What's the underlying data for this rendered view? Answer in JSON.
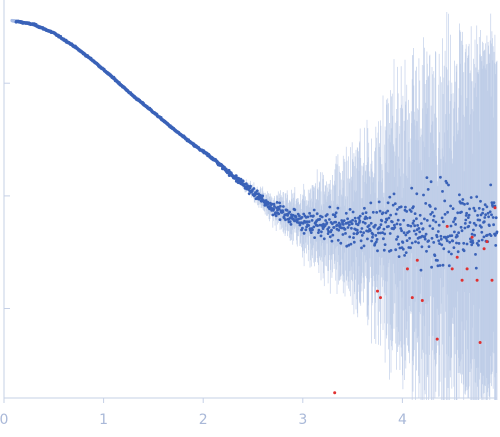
{
  "chart_data": {
    "type": "scatter",
    "title": "",
    "xlabel": "",
    "ylabel": "",
    "xlim": [
      0,
      4.95
    ],
    "y_scale": "log",
    "y_axis_labels_shown": false,
    "x_ticks": [
      "0",
      "1",
      "2",
      "3",
      "4"
    ],
    "grid": false,
    "legend": "none",
    "colors": {
      "axis": "#c5d0e6",
      "tick_label": "#a9b8d8",
      "points": "#3a62b8",
      "error_bars": "#b8c8e6",
      "outliers": "#e03030"
    },
    "series": [
      {
        "role": "scattering intensity (decreasing smoothly to about q = 2.5, then noisy plateau)",
        "x": [
          0.1,
          0.3,
          0.5,
          0.7,
          0.9,
          1.1,
          1.3,
          1.5,
          1.7,
          1.9,
          2.1,
          2.3,
          2.5,
          2.7,
          2.9,
          3.1,
          3.3,
          3.5,
          3.7,
          3.9,
          4.1,
          4.3,
          4.5,
          4.7,
          4.9
        ],
        "y_rel": [
          1.0,
          0.93,
          0.78,
          0.6,
          0.44,
          0.31,
          0.215,
          0.155,
          0.11,
          0.08,
          0.06,
          0.042,
          0.03,
          0.022,
          0.018,
          0.016,
          0.015,
          0.015,
          0.015,
          0.015,
          0.015,
          0.015,
          0.016,
          0.016,
          0.016
        ]
      },
      {
        "role": "outlier points (red)",
        "x": [
          3.32,
          3.75,
          3.78,
          4.05,
          4.1,
          4.15,
          4.2,
          4.35,
          4.45,
          4.5,
          4.55,
          4.6,
          4.65,
          4.7,
          4.75,
          4.78,
          4.82,
          4.85,
          4.9,
          4.93
        ],
        "y_rel": [
          0.0005,
          0.004,
          0.0035,
          0.0063,
          0.0035,
          0.0075,
          0.0033,
          0.0015,
          0.015,
          0.0063,
          0.008,
          0.005,
          0.0063,
          0.012,
          0.005,
          0.0014,
          0.0095,
          0.011,
          0.005,
          0.022
        ]
      }
    ]
  }
}
